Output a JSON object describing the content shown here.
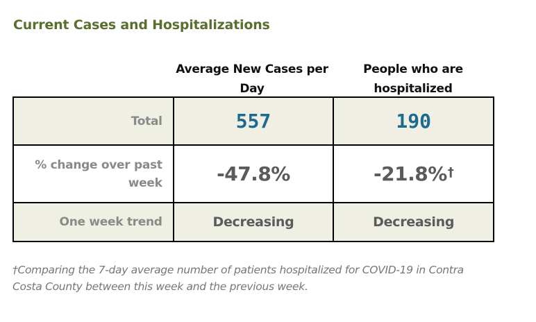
{
  "title": "Current Cases and Hospitalizations",
  "columns": [
    "Average New Cases per Day",
    "People who are hospitalized"
  ],
  "rows": [
    {
      "label": "Total",
      "values": [
        "557",
        "190"
      ],
      "note_marks": [
        "",
        ""
      ]
    },
    {
      "label": "% change over past week",
      "values": [
        "-47.8%",
        "-21.8%"
      ],
      "note_marks": [
        "",
        "†"
      ]
    },
    {
      "label": "One week trend",
      "values": [
        "Decreasing",
        "Decreasing"
      ],
      "note_marks": [
        "",
        ""
      ]
    }
  ],
  "footnote": {
    "mark": "†",
    "text": "Comparing the 7-day average number of patients hospitalized for COVID-19 in Contra Costa County between this week and the previous week."
  },
  "colors": {
    "title": "#5a6e2e",
    "total_value": "#1c6a8e",
    "shaded_row": "#f0efe4",
    "label_text": "#8a8a8a",
    "value_text": "#5b5b5b"
  }
}
